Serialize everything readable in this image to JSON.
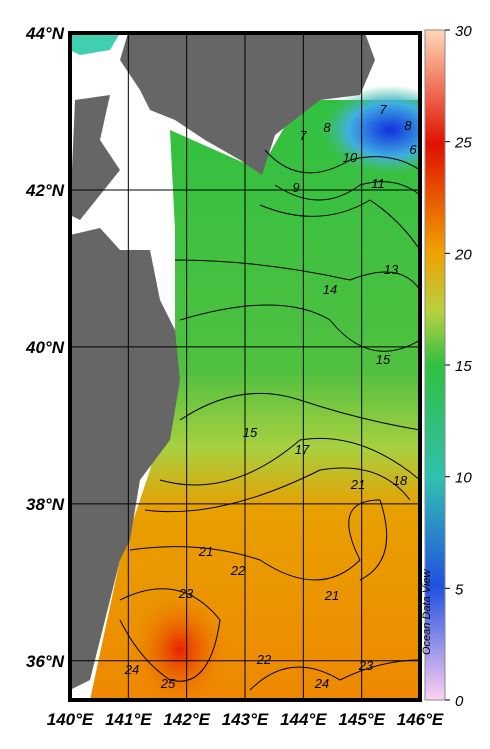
{
  "map": {
    "xlim": [
      140,
      146
    ],
    "ylim": [
      35.5,
      44
    ],
    "lon_ticks": [
      {
        "value": 140,
        "label": "140°E"
      },
      {
        "value": 141,
        "label": "141°E"
      },
      {
        "value": 142,
        "label": "142°E"
      },
      {
        "value": 143,
        "label": "143°E"
      },
      {
        "value": 144,
        "label": "144°E"
      },
      {
        "value": 145,
        "label": "145°E"
      },
      {
        "value": 146,
        "label": "146°E"
      }
    ],
    "lat_ticks": [
      {
        "value": 36,
        "label": "36°N"
      },
      {
        "value": 38,
        "label": "38°N"
      },
      {
        "value": 40,
        "label": "40°N"
      },
      {
        "value": 42,
        "label": "42°N"
      },
      {
        "value": 44,
        "label": "44°N"
      }
    ],
    "colorbar": {
      "range": [
        0,
        30
      ],
      "ticks": [
        0,
        5,
        10,
        15,
        20,
        25,
        30
      ]
    },
    "contour_labels": [
      7,
      8,
      7,
      8,
      6,
      10,
      9,
      11,
      13,
      14,
      15,
      15,
      17,
      18,
      21,
      21,
      22,
      23,
      21,
      24,
      25,
      22,
      24,
      23
    ],
    "watermark": "Ocean Data View"
  }
}
